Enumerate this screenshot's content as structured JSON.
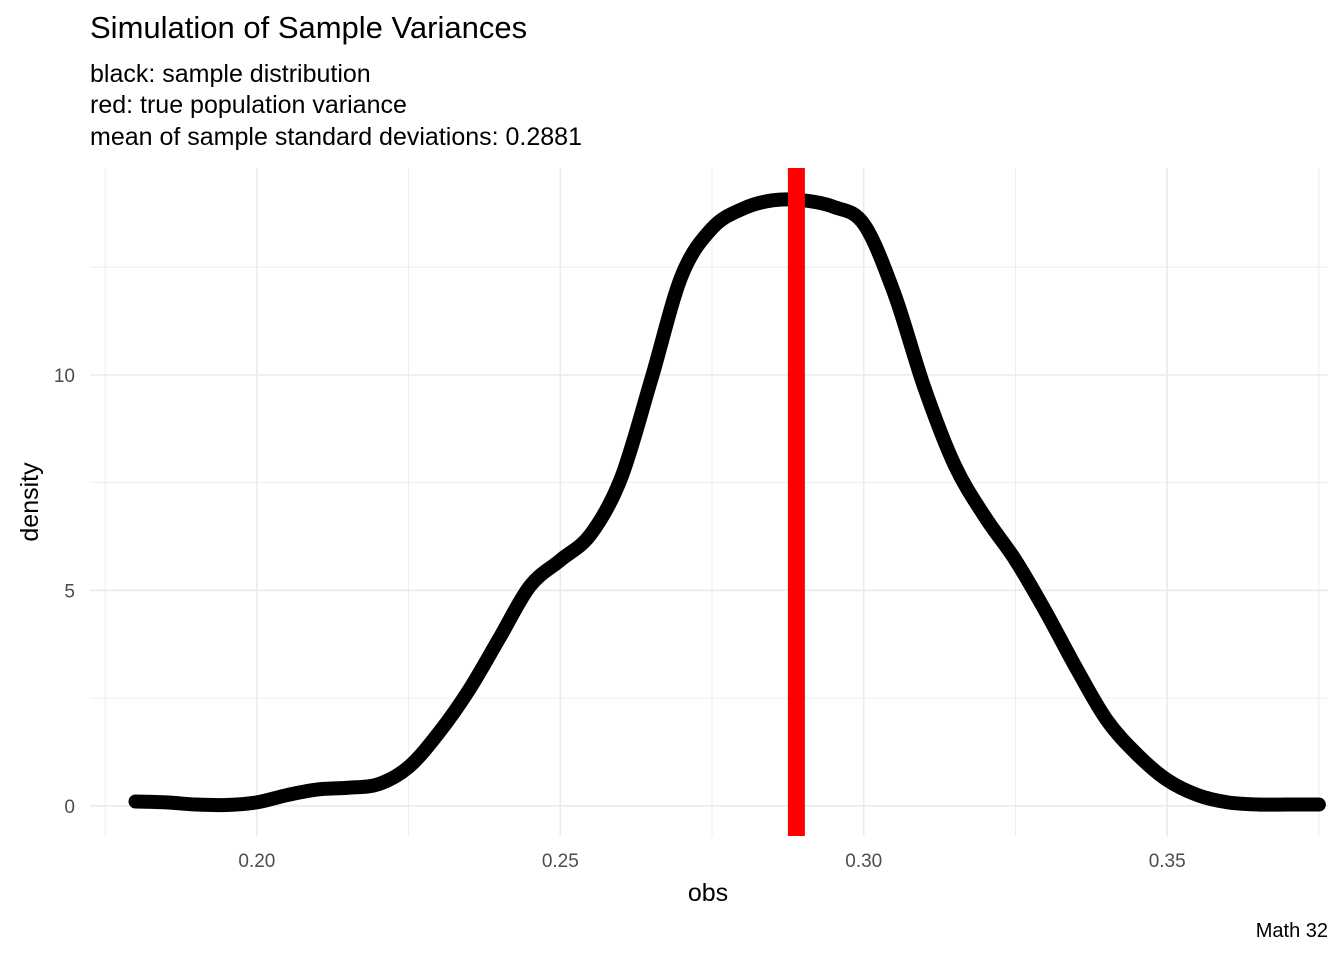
{
  "title": "Simulation of Sample Variances",
  "subtitle": {
    "line1": "black: sample distribution",
    "line2": "red: true population variance",
    "line3": "mean of sample standard deviations:  0.2881"
  },
  "caption": "Math 32",
  "colors": {
    "density_line": "#000000",
    "reference_line": "#ff0000",
    "grid": "#ebebeb",
    "tick_text": "#4d4d4d"
  },
  "chart_data": {
    "type": "line",
    "title": "Simulation of Sample Variances",
    "xlabel": "obs",
    "ylabel": "density",
    "xlim": [
      0.1725,
      0.3765
    ],
    "ylim": [
      -0.7,
      14.8
    ],
    "x_ticks": [
      {
        "value": 0.2,
        "label": "0.20"
      },
      {
        "value": 0.25,
        "label": "0.25"
      },
      {
        "value": 0.3,
        "label": "0.30"
      },
      {
        "value": 0.35,
        "label": "0.35"
      }
    ],
    "y_ticks": [
      {
        "value": 0,
        "label": "0"
      },
      {
        "value": 5,
        "label": "5"
      },
      {
        "value": 10,
        "label": "10"
      }
    ],
    "grid": true,
    "series": [
      {
        "values": [
          [
            0.18,
            0.1
          ],
          [
            0.185,
            0.08
          ],
          [
            0.19,
            0.03
          ],
          [
            0.195,
            0.02
          ],
          [
            0.2,
            0.08
          ],
          [
            0.205,
            0.25
          ],
          [
            0.21,
            0.38
          ],
          [
            0.215,
            0.42
          ],
          [
            0.22,
            0.5
          ],
          [
            0.225,
            0.9
          ],
          [
            0.23,
            1.7
          ],
          [
            0.235,
            2.7
          ],
          [
            0.24,
            3.9
          ],
          [
            0.245,
            5.1
          ],
          [
            0.25,
            5.7
          ],
          [
            0.255,
            6.3
          ],
          [
            0.26,
            7.6
          ],
          [
            0.265,
            9.9
          ],
          [
            0.27,
            12.3
          ],
          [
            0.275,
            13.4
          ],
          [
            0.28,
            13.85
          ],
          [
            0.285,
            14.05
          ],
          [
            0.29,
            14.05
          ],
          [
            0.295,
            13.9
          ],
          [
            0.3,
            13.5
          ],
          [
            0.305,
            11.9
          ],
          [
            0.31,
            9.7
          ],
          [
            0.315,
            7.9
          ],
          [
            0.32,
            6.7
          ],
          [
            0.325,
            5.7
          ],
          [
            0.33,
            4.5
          ],
          [
            0.335,
            3.2
          ],
          [
            0.34,
            2.0
          ],
          [
            0.345,
            1.2
          ],
          [
            0.35,
            0.6
          ],
          [
            0.355,
            0.25
          ],
          [
            0.36,
            0.08
          ],
          [
            0.365,
            0.03
          ],
          [
            0.37,
            0.03
          ],
          [
            0.375,
            0.03
          ]
        ]
      }
    ],
    "reference_line": {
      "x": 0.2889,
      "color": "#ff0000"
    }
  }
}
